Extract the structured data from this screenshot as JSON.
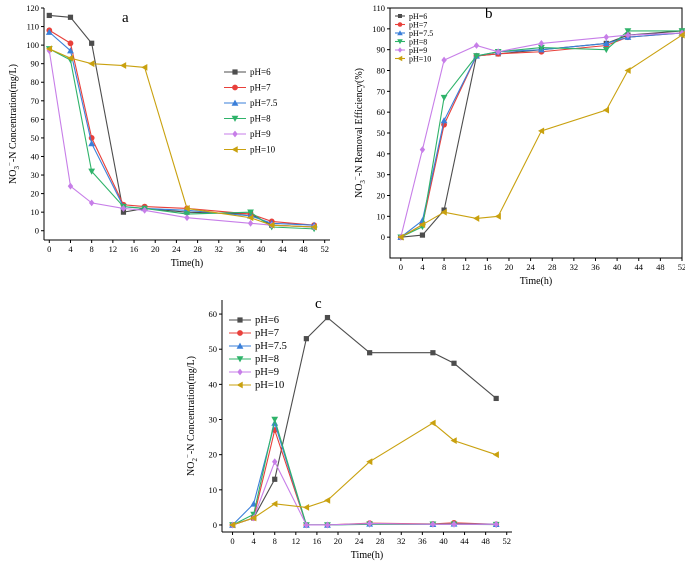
{
  "figure": {
    "series_styles": [
      {
        "label": "pH=6",
        "color": "#4d4d4d",
        "marker": "square"
      },
      {
        "label": "pH=7",
        "color": "#e8403b",
        "marker": "circle"
      },
      {
        "label": "pH=7.5",
        "color": "#3a7fd9",
        "marker": "triangle-up"
      },
      {
        "label": "pH=8",
        "color": "#2fb36a",
        "marker": "triangle-down"
      },
      {
        "label": "pH=9",
        "color": "#c77ee8",
        "marker": "diamond"
      },
      {
        "label": "pH=10",
        "color": "#c9a10f",
        "marker": "triangle-left"
      }
    ]
  },
  "chart_data": [
    {
      "id": "a",
      "panel_letter": "a",
      "type": "line",
      "xlabel": "Time(h)",
      "ylabel": "NO3−-N Concentration(mg/L)",
      "ylabel_parts": {
        "pre": "NO",
        "sub": "3",
        "sup": "−",
        "post": "-N Concentration(mg/L)"
      },
      "xlim": [
        -1,
        53
      ],
      "ylim": [
        -5,
        120
      ],
      "xticks": [
        0,
        4,
        8,
        12,
        16,
        20,
        24,
        28,
        32,
        36,
        40,
        44,
        48,
        52
      ],
      "yticks": [
        0,
        10,
        20,
        30,
        40,
        50,
        60,
        70,
        80,
        90,
        100,
        110,
        120
      ],
      "legend": "center-right",
      "series": [
        {
          "name": "pH=6",
          "x": [
            0,
            4,
            8,
            14,
            18,
            26,
            38,
            42,
            50
          ],
          "y": [
            116,
            115,
            101,
            10,
            12,
            10,
            9,
            3,
            2
          ]
        },
        {
          "name": "pH=7",
          "x": [
            0,
            4,
            8,
            14,
            18,
            26,
            38,
            42,
            50
          ],
          "y": [
            108,
            101,
            50,
            14,
            13,
            12,
            9,
            5,
            3
          ]
        },
        {
          "name": "pH=7.5",
          "x": [
            0,
            4,
            8,
            14,
            18,
            26,
            38,
            42,
            50
          ],
          "y": [
            107,
            97,
            47,
            13,
            12,
            11,
            8,
            4,
            3
          ]
        },
        {
          "name": "pH=8",
          "x": [
            0,
            4,
            8,
            14,
            18,
            26,
            38,
            42,
            50
          ],
          "y": [
            98,
            92,
            32,
            13,
            12,
            9,
            10,
            2,
            1
          ]
        },
        {
          "name": "pH=9",
          "x": [
            0,
            4,
            8,
            14,
            18,
            26,
            38,
            42,
            50
          ],
          "y": [
            97,
            24,
            15,
            12,
            11,
            7,
            4,
            3,
            2
          ]
        },
        {
          "name": "pH=10",
          "x": [
            0,
            4,
            8,
            14,
            18,
            26,
            38,
            42,
            50
          ],
          "y": [
            98,
            93,
            90,
            89,
            88,
            12,
            7,
            3,
            2
          ]
        }
      ]
    },
    {
      "id": "b",
      "panel_letter": "b",
      "type": "line",
      "xlabel": "Time(h)",
      "ylabel": "NO3−-N Removal Efficiency(%)",
      "ylabel_parts": {
        "pre": "NO",
        "sub": "3",
        "sup": "−",
        "post": "-N Removal Efficiency(%)"
      },
      "xlim": [
        -2,
        52
      ],
      "ylim": [
        -10,
        110
      ],
      "xticks": [
        0,
        4,
        8,
        12,
        16,
        20,
        24,
        28,
        32,
        36,
        40,
        44,
        48,
        52
      ],
      "yticks": [
        0,
        10,
        20,
        30,
        40,
        50,
        60,
        70,
        80,
        90,
        100,
        110
      ],
      "legend": "top-left",
      "series": [
        {
          "name": "pH=6",
          "x": [
            0,
            4,
            8,
            14,
            18,
            26,
            38,
            42,
            52
          ],
          "y": [
            0,
            1,
            13,
            87,
            88,
            90,
            93,
            97,
            99
          ]
        },
        {
          "name": "pH=7",
          "x": [
            0,
            4,
            8,
            14,
            18,
            26,
            38,
            42,
            52
          ],
          "y": [
            0,
            6,
            54,
            87,
            88,
            89,
            92,
            96,
            98
          ]
        },
        {
          "name": "pH=7.5",
          "x": [
            0,
            4,
            8,
            14,
            18,
            26,
            38,
            42,
            52
          ],
          "y": [
            0,
            8,
            56,
            87,
            89,
            90,
            93,
            96,
            98
          ]
        },
        {
          "name": "pH=8",
          "x": [
            0,
            4,
            8,
            14,
            18,
            26,
            38,
            42,
            52
          ],
          "y": [
            0,
            5,
            67,
            87,
            89,
            91,
            90,
            99,
            99
          ]
        },
        {
          "name": "pH=9",
          "x": [
            0,
            4,
            8,
            14,
            18,
            26,
            38,
            42,
            52
          ],
          "y": [
            0,
            42,
            85,
            92,
            89,
            93,
            96,
            97,
            98
          ]
        },
        {
          "name": "pH=10",
          "x": [
            0,
            4,
            8,
            14,
            18,
            26,
            38,
            42,
            52
          ],
          "y": [
            0,
            6,
            12,
            9,
            10,
            51,
            61,
            80,
            97
          ]
        }
      ]
    },
    {
      "id": "c",
      "panel_letter": "c",
      "type": "line",
      "xlabel": "Time(h)",
      "ylabel": "NO2−-N Concentration(mg/L)",
      "ylabel_parts": {
        "pre": "NO",
        "sub": "2",
        "sup": "−",
        "post": "-N Concentration(mg/L)"
      },
      "xlim": [
        -2,
        53
      ],
      "ylim": [
        -2,
        64
      ],
      "xticks": [
        0,
        4,
        8,
        12,
        16,
        20,
        24,
        28,
        32,
        36,
        40,
        44,
        48,
        52
      ],
      "yticks": [
        0,
        10,
        20,
        30,
        40,
        50,
        60
      ],
      "legend": "top-left",
      "series": [
        {
          "name": "pH=6",
          "x": [
            0,
            4,
            8,
            14,
            18,
            26,
            38,
            42,
            50
          ],
          "y": [
            0,
            2,
            13,
            53,
            59,
            49,
            49,
            46,
            36
          ]
        },
        {
          "name": "pH=7",
          "x": [
            0,
            4,
            8,
            14,
            18,
            26,
            38,
            42,
            50
          ],
          "y": [
            0,
            2,
            27,
            0,
            0,
            0.5,
            0.3,
            0.6,
            0.2
          ]
        },
        {
          "name": "pH=7.5",
          "x": [
            0,
            4,
            8,
            14,
            18,
            26,
            38,
            42,
            50
          ],
          "y": [
            0,
            6,
            29,
            0,
            0,
            0.3,
            0.2,
            0.3,
            0.2
          ]
        },
        {
          "name": "pH=8",
          "x": [
            0,
            4,
            8,
            14,
            18,
            26,
            38,
            42,
            50
          ],
          "y": [
            0,
            3,
            30,
            0,
            0,
            0.2,
            0.2,
            0.2,
            0.1
          ]
        },
        {
          "name": "pH=9",
          "x": [
            0,
            4,
            8,
            14,
            18,
            26,
            38,
            42,
            50
          ],
          "y": [
            0,
            2,
            18,
            0,
            0,
            0.4,
            0.2,
            0.2,
            0.2
          ]
        },
        {
          "name": "pH=10",
          "x": [
            0,
            4,
            8,
            14,
            18,
            26,
            38,
            42,
            50
          ],
          "y": [
            0,
            2,
            6,
            5,
            7,
            18,
            29,
            24,
            20
          ]
        }
      ]
    }
  ]
}
